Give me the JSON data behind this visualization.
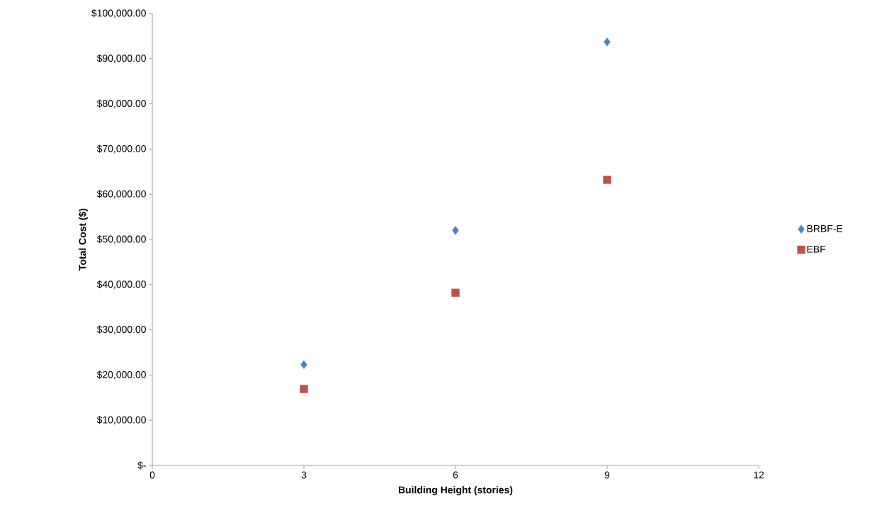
{
  "chart_data": {
    "type": "scatter",
    "xlabel": "Building Height (stories)",
    "ylabel": "Total Cost ($)",
    "x": [
      3,
      6,
      9
    ],
    "series": [
      {
        "name": "BRBF-E",
        "color": "#4f81bd",
        "marker": "diamond",
        "values": [
          22300,
          52000,
          93700
        ]
      },
      {
        "name": "EBF",
        "color": "#c0504d",
        "marker": "square",
        "values": [
          16900,
          38200,
          63200
        ]
      }
    ],
    "xlim": [
      0,
      12
    ],
    "xticks": [
      0,
      3,
      6,
      9,
      12
    ],
    "ylim": [
      0,
      100000
    ],
    "yticks": [
      {
        "value": 0,
        "label": "$-"
      },
      {
        "value": 10000,
        "label": "$10,000.00"
      },
      {
        "value": 20000,
        "label": "$20,000.00"
      },
      {
        "value": 30000,
        "label": "$30,000.00"
      },
      {
        "value": 40000,
        "label": "$40,000.00"
      },
      {
        "value": 50000,
        "label": "$50,000.00"
      },
      {
        "value": 60000,
        "label": "$60,000.00"
      },
      {
        "value": 70000,
        "label": "$70,000.00"
      },
      {
        "value": 80000,
        "label": "$80,000.00"
      },
      {
        "value": 90000,
        "label": "$90,000.00"
      },
      {
        "value": 100000,
        "label": "$100,000.00"
      }
    ],
    "grid": false,
    "legend": "right"
  }
}
